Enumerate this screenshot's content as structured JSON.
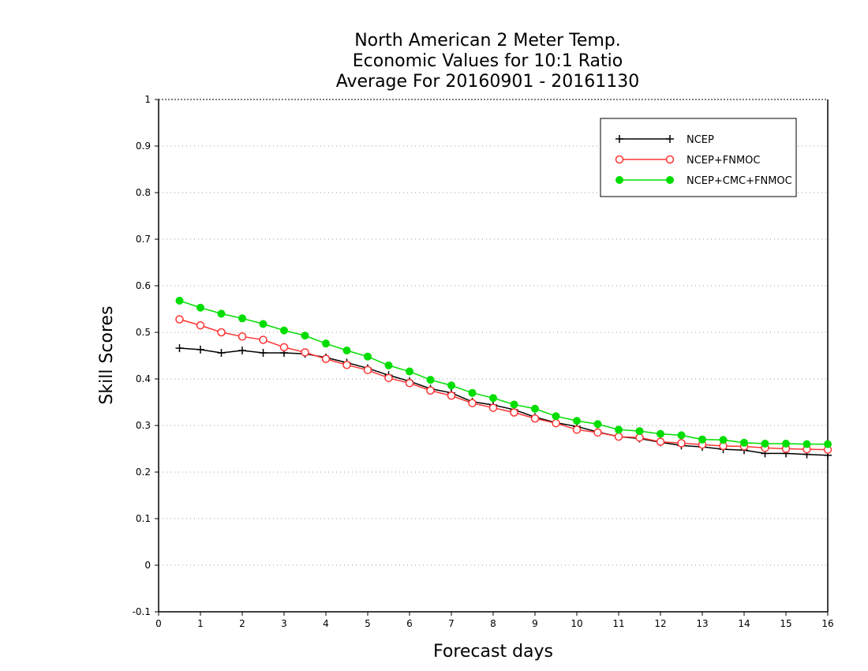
{
  "chart_data": {
    "type": "line",
    "title": [
      "North American 2 Meter Temp.",
      "Economic Values for 10:1 Ratio",
      "Average For 20160901 - 20161130"
    ],
    "xlabel": "Forecast days",
    "ylabel": "Skill Scores",
    "xlim": [
      0,
      16
    ],
    "ylim": [
      -0.1,
      1
    ],
    "xticks": [
      "0",
      "1",
      "2",
      "3",
      "4",
      "5",
      "6",
      "7",
      "8",
      "9",
      "10",
      "11",
      "12",
      "13",
      "14",
      "15",
      "16"
    ],
    "yticks": [
      "-0.1",
      "0",
      "0.1",
      "0.2",
      "0.3",
      "0.4",
      "0.5",
      "0.6",
      "0.7",
      "0.8",
      "0.9",
      "1"
    ],
    "grid": "horizontal-dotted",
    "legend_position": "top-right",
    "x": [
      0.5,
      1,
      1.5,
      2,
      2.5,
      3,
      3.5,
      4,
      4.5,
      5,
      5.5,
      6,
      6.5,
      7,
      7.5,
      8,
      8.5,
      9,
      9.5,
      10,
      10.5,
      11,
      11.5,
      12,
      12.5,
      13,
      13.5,
      14,
      14.5,
      15,
      15.5,
      16
    ],
    "series": [
      {
        "name": "NCEP",
        "color": "#000000",
        "marker": "plus",
        "values": [
          0.466,
          0.463,
          0.456,
          0.461,
          0.456,
          0.456,
          0.454,
          0.446,
          0.435,
          0.423,
          0.408,
          0.395,
          0.379,
          0.37,
          0.351,
          0.344,
          0.334,
          0.318,
          0.306,
          0.298,
          0.286,
          0.276,
          0.272,
          0.264,
          0.257,
          0.254,
          0.249,
          0.247,
          0.24,
          0.24,
          0.238,
          0.236
        ]
      },
      {
        "name": "NCEP+FNMOC",
        "color": "#ff3333",
        "marker": "open-circle",
        "values": [
          0.528,
          0.515,
          0.5,
          0.491,
          0.484,
          0.468,
          0.457,
          0.443,
          0.43,
          0.419,
          0.402,
          0.391,
          0.375,
          0.364,
          0.348,
          0.338,
          0.328,
          0.315,
          0.305,
          0.291,
          0.285,
          0.276,
          0.274,
          0.265,
          0.262,
          0.259,
          0.256,
          0.255,
          0.252,
          0.25,
          0.249,
          0.248
        ]
      },
      {
        "name": "NCEP+CMC+FNMOC",
        "color": "#00dd00",
        "marker": "filled-circle",
        "values": [
          0.568,
          0.553,
          0.54,
          0.53,
          0.518,
          0.504,
          0.493,
          0.476,
          0.461,
          0.448,
          0.429,
          0.416,
          0.398,
          0.386,
          0.37,
          0.359,
          0.345,
          0.336,
          0.32,
          0.31,
          0.303,
          0.291,
          0.288,
          0.282,
          0.279,
          0.27,
          0.269,
          0.263,
          0.261,
          0.261,
          0.26,
          0.26
        ]
      }
    ]
  }
}
